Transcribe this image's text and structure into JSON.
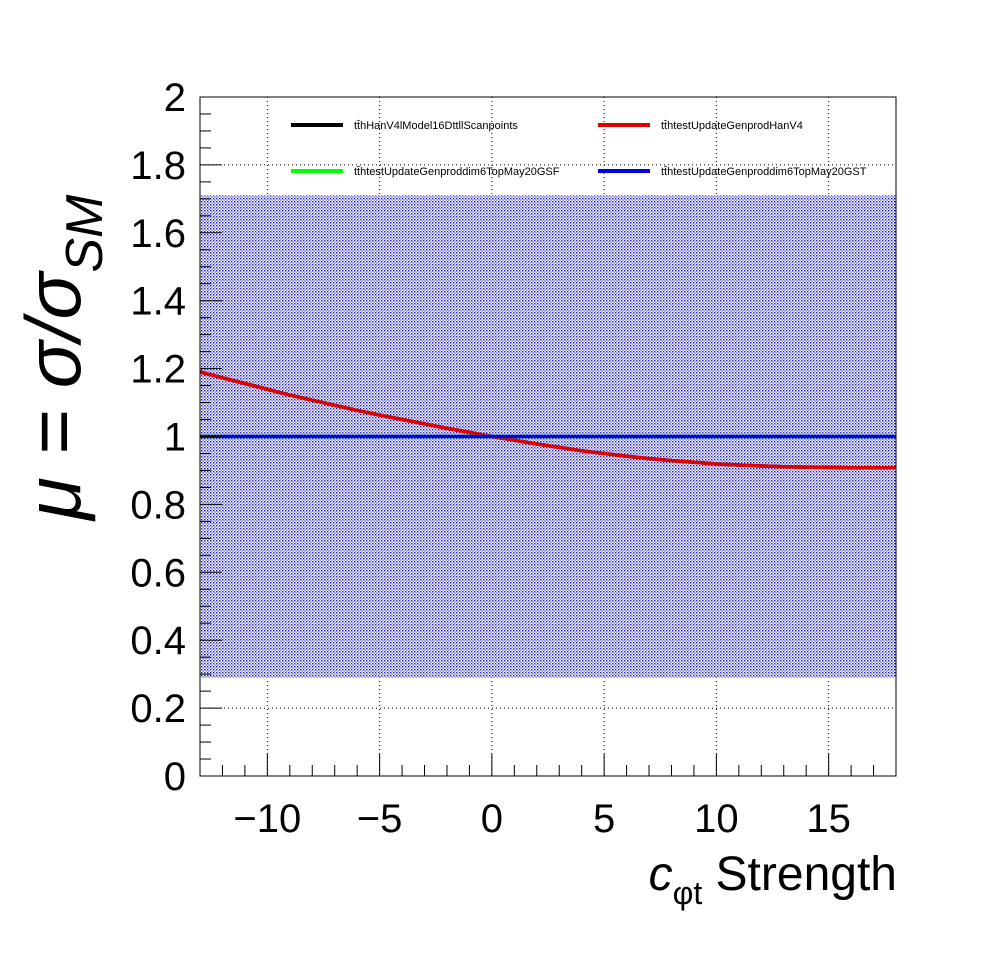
{
  "chart_data": {
    "type": "line",
    "xlabel_main": "c",
    "xlabel_sub": "φt",
    "xlabel_rest": " Strength",
    "ylabel_parts": [
      "μ = σ/σ",
      "SM"
    ],
    "xlim": [
      -13,
      18
    ],
    "ylim": [
      0,
      2
    ],
    "xticks": [
      -10,
      -5,
      0,
      5,
      10,
      15
    ],
    "xtick_labels": [
      "−10",
      "−5",
      "0",
      "5",
      "10",
      "15"
    ],
    "yticks": [
      0,
      0.2,
      0.4,
      0.6,
      0.8,
      1,
      1.2,
      1.4,
      1.6,
      1.8,
      2
    ],
    "ytick_labels": [
      "0",
      "0.2",
      "0.4",
      "0.6",
      "0.8",
      "1",
      "1.2",
      "1.4",
      "1.6",
      "1.8",
      "2"
    ],
    "grid": true,
    "legend_position": "top",
    "band": {
      "x": [
        -13,
        18
      ],
      "ymin": 0.29,
      "ymax": 1.71,
      "color": "#1414c8"
    },
    "x": [
      -13,
      -12,
      -11,
      -10,
      -9,
      -8,
      -7,
      -6,
      -5,
      -4,
      -3,
      -2,
      -1,
      0,
      1,
      2,
      3,
      4,
      5,
      6,
      7,
      8,
      9,
      10,
      11,
      12,
      13,
      14,
      15,
      16,
      17,
      18
    ],
    "series": [
      {
        "name": "tt̄hHanV4lModel16DttllScanpoints",
        "color": "#000000",
        "values": [
          1.19,
          1.173,
          1.156,
          1.139,
          1.122,
          1.107,
          1.092,
          1.077,
          1.063,
          1.05,
          1.037,
          1.024,
          1.012,
          1.0,
          0.989,
          0.978,
          0.968,
          0.958,
          0.95,
          0.942,
          0.935,
          0.929,
          0.924,
          0.919,
          0.916,
          0.913,
          0.911,
          0.91,
          0.909,
          0.908,
          0.908,
          0.908
        ]
      },
      {
        "name": "tt̄htestUpdateGenprodHanV4",
        "color": "#e00000",
        "values": [
          1.19,
          1.173,
          1.156,
          1.139,
          1.122,
          1.107,
          1.092,
          1.077,
          1.063,
          1.05,
          1.037,
          1.024,
          1.012,
          1.0,
          0.989,
          0.978,
          0.968,
          0.958,
          0.95,
          0.942,
          0.935,
          0.929,
          0.924,
          0.919,
          0.916,
          0.913,
          0.911,
          0.91,
          0.909,
          0.908,
          0.908,
          0.908
        ]
      },
      {
        "name": "tt̄htestUpdateGenproddim6TopMay20GSF",
        "color": "#00ff00",
        "values": [
          1,
          1,
          1,
          1,
          1,
          1,
          1,
          1,
          1,
          1,
          1,
          1,
          1,
          1,
          1,
          1,
          1,
          1,
          1,
          1,
          1,
          1,
          1,
          1,
          1,
          1,
          1,
          1,
          1,
          1,
          1,
          1
        ]
      },
      {
        "name": "tt̄htestUpdateGenproddim6TopMay20GST",
        "color": "#0000e0",
        "values": [
          1,
          1,
          1,
          1,
          1,
          1,
          1,
          1,
          1,
          1,
          1,
          1,
          1,
          1,
          1,
          1,
          1,
          1,
          1,
          1,
          1,
          1,
          1,
          1,
          1,
          1,
          1,
          1,
          1,
          1,
          1,
          1
        ]
      }
    ]
  }
}
